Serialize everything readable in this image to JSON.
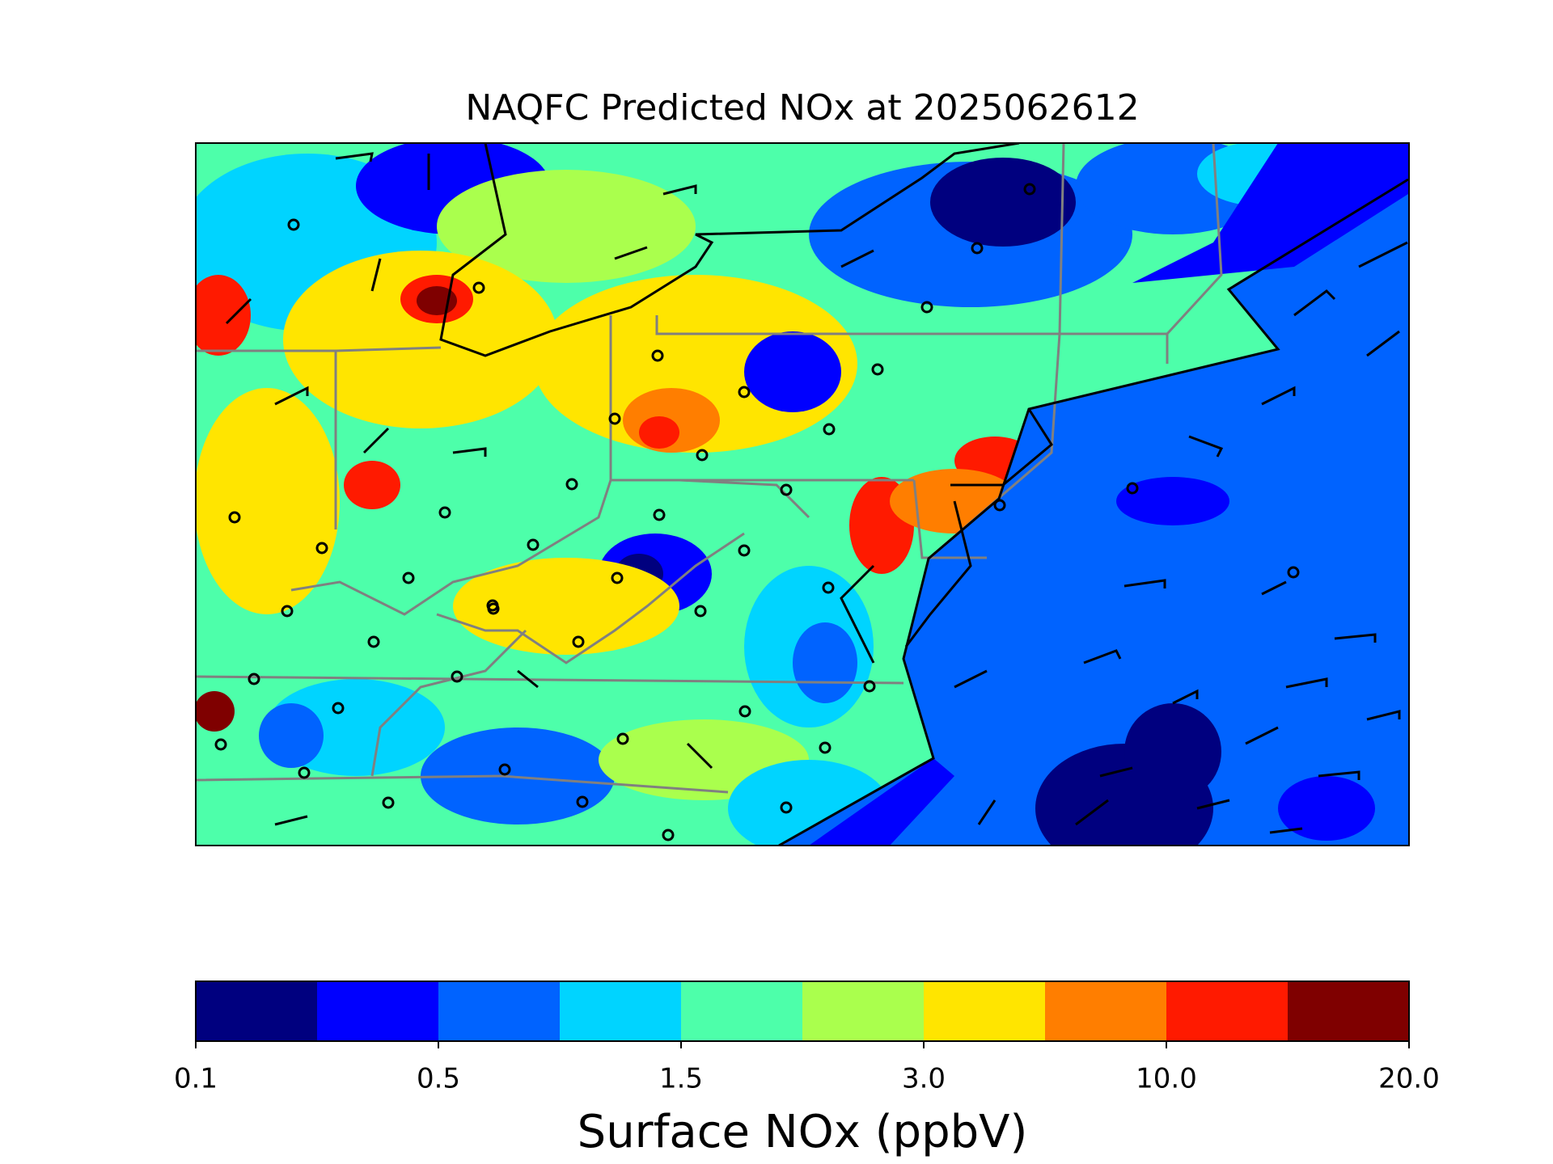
{
  "title": "NAQFC Predicted NOx at 2025062612",
  "colorbar": {
    "label": "Surface NOx (ppbV)",
    "colors": [
      "#00007f",
      "#0000ff",
      "#0063ff",
      "#00d4ff",
      "#4dffaa",
      "#aaff4d",
      "#ffe500",
      "#ff7e00",
      "#ff1a00",
      "#7f0000"
    ],
    "ticks": [
      {
        "value": 0.1,
        "label": "0.1"
      },
      0.5,
      1.5,
      {
        "value": 3,
        "label": "3.0"
      },
      {
        "value": 10,
        "label": "10.0"
      },
      {
        "value": 20,
        "label": "20.0"
      }
    ]
  }
}
